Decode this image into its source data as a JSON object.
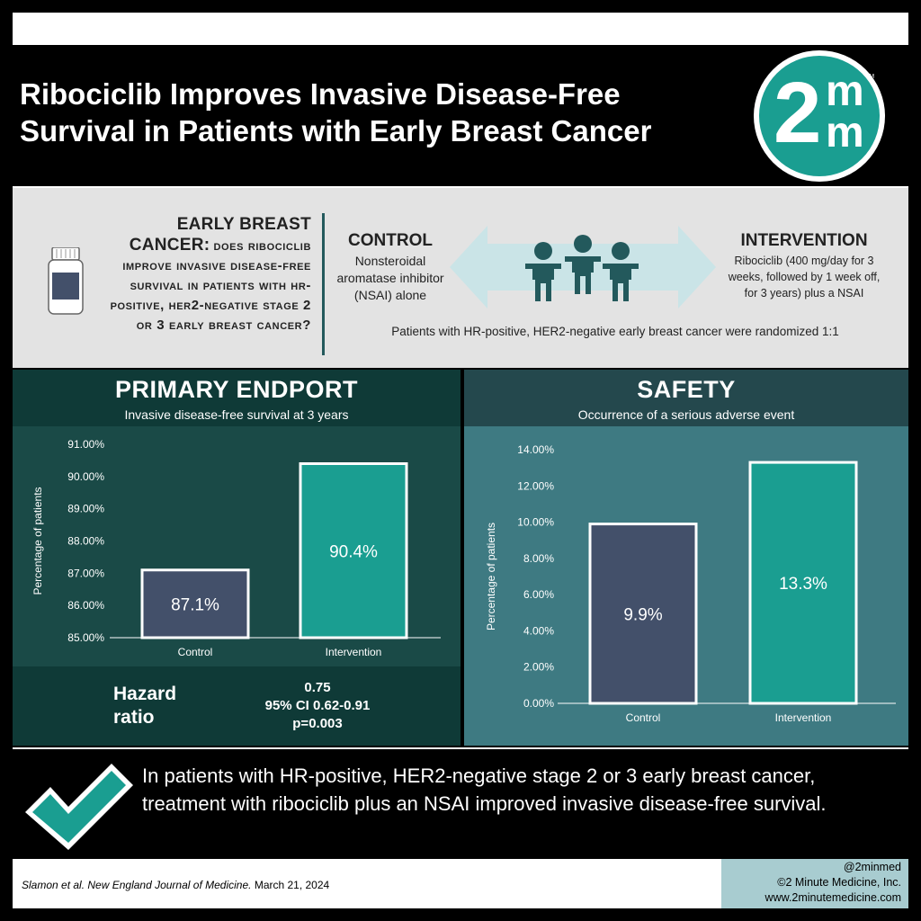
{
  "header": {
    "title": "Ribociclib Improves Invasive Disease-Free Survival in Patients with Early Breast Cancer",
    "logo": {
      "digit": "2",
      "letter_top": "m",
      "letter_bottom": "m",
      "tm": "TM"
    }
  },
  "design": {
    "question_head": "Early Breast Cancer:",
    "question_body": "Does ribociclib improve invasive disease-free survival in patients with HR-positive, HER2-negative stage 2 or 3 early breast cancer?",
    "control_title": "CONTROL",
    "control_text": "Nonsteroidal aromatase inhibitor (NSAI) alone",
    "intervention_title": "INTERVENTION",
    "intervention_text": "Ribociclib (400 mg/day for 3 weeks, followed by 1 week off, for 3 years) plus a NSAI",
    "randomization": "Patients with HR-positive, HER2-negative early breast cancer were randomized 1:1"
  },
  "primary": {
    "title": "PRIMARY ENDPORT",
    "subtitle": "Invasive disease-free survival at 3 years",
    "hr_label_1": "Hazard",
    "hr_label_2": "ratio",
    "hr_value": "0.75",
    "hr_ci": "95% CI 0.62-0.91",
    "hr_p": "p=0.003"
  },
  "safety": {
    "title": "SAFETY",
    "subtitle": "Occurrence of a serious adverse event"
  },
  "chart_data": [
    {
      "type": "bar",
      "categories": [
        "Control",
        "Intervention"
      ],
      "values": [
        87.1,
        90.4
      ],
      "value_labels": [
        "87.1%",
        "90.4%"
      ],
      "ylabel": "Percentage of patients",
      "ylim": [
        85,
        91
      ],
      "yticks": [
        85,
        86,
        87,
        88,
        89,
        90,
        91
      ],
      "ytick_labels": [
        "85.00%",
        "86.00%",
        "87.00%",
        "88.00%",
        "89.00%",
        "90.00%",
        "91.00%"
      ],
      "colors": [
        "#43506a",
        "#1a9e91"
      ]
    },
    {
      "type": "bar",
      "categories": [
        "Control",
        "Intervention"
      ],
      "values": [
        9.9,
        13.3
      ],
      "value_labels": [
        "9.9%",
        "13.3%"
      ],
      "ylabel": "Percentage of patients",
      "ylim": [
        0,
        14
      ],
      "yticks": [
        0,
        2,
        4,
        6,
        8,
        10,
        12,
        14
      ],
      "ytick_labels": [
        "0.00%",
        "2.00%",
        "4.00%",
        "6.00%",
        "8.00%",
        "10.00%",
        "12.00%",
        "14.00%"
      ],
      "colors": [
        "#43506a",
        "#1a9e91"
      ]
    }
  ],
  "conclusion": "In patients with HR-positive, HER2-negative stage 2 or 3 early breast cancer, treatment with ribociclib plus an NSAI improved invasive disease-free survival.",
  "footer": {
    "citation_authors": "Slamon et al. ",
    "citation_journal": "New England Journal of Medicine.",
    "citation_date": " March 21, 2024",
    "handle": "@2minmed",
    "copyright": "©2 Minute Medicine, Inc.",
    "website": "www.2minutemedicine.com"
  },
  "colors": {
    "teal": "#1a9e91",
    "dark_teal": "#1a4a47",
    "slate": "#43506a",
    "safety_bg": "#3e7a82"
  }
}
